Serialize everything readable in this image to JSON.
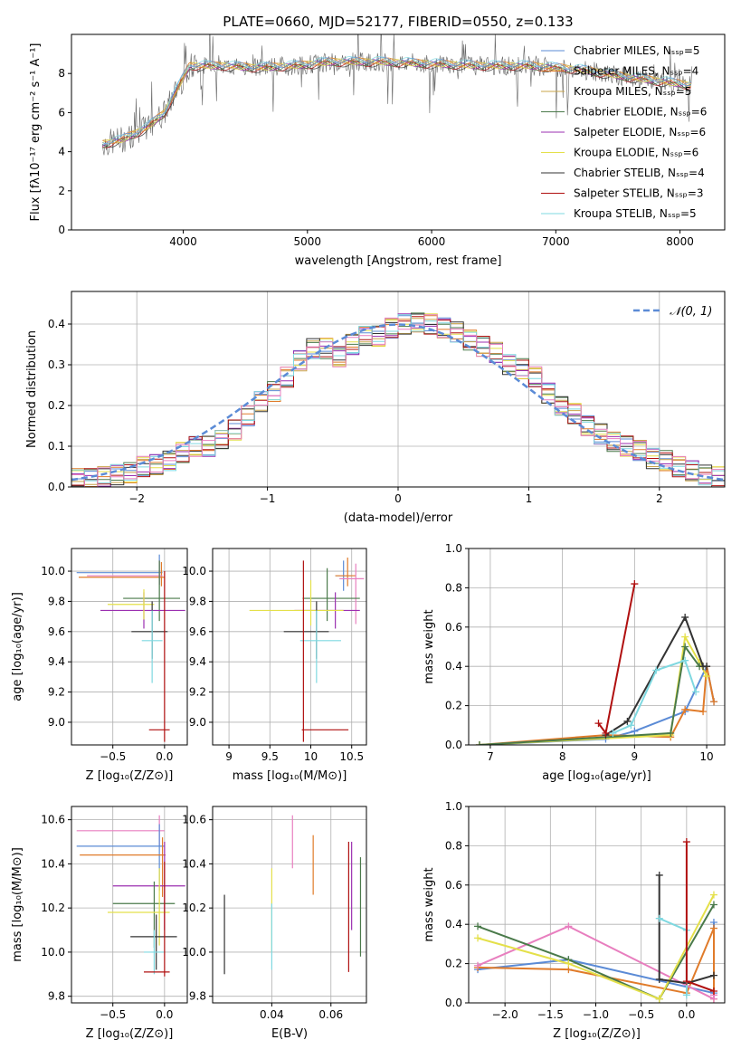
{
  "figure_title": "PLATE=0660, MJD=52177, FIBERID=0550, z=0.133",
  "colors": {
    "chabrier_miles": "#5b8bd6",
    "salpeter_miles": "#e07b2a",
    "kroupa_miles": "#c9a44a",
    "chabrier_elodie": "#4a7a4a",
    "salpeter_elodie": "#9b2fb0",
    "kroupa_elodie": "#e4e04a",
    "chabrier_stelib": "#333333",
    "salpeter_stelib": "#b01010",
    "kroupa_stelib": "#7fd8e0",
    "pink": "#e87fbf",
    "green": "#6a9a5a"
  },
  "chart_data": [
    {
      "id": "spectrum",
      "type": "line",
      "xlabel": "wavelength [Angstrom, rest frame]",
      "ylabel": "Flux [fλ10⁻¹⁷ erg cm⁻² s⁻¹ A⁻¹]",
      "xlim": [
        3100,
        8360
      ],
      "ylim": [
        0,
        10
      ],
      "xticks": [
        4000,
        5000,
        6000,
        7000,
        8000
      ],
      "yticks": [
        0,
        2,
        4,
        6,
        8
      ],
      "grid": false,
      "legend_position": "right",
      "legend": [
        {
          "label": "Chabrier MILES, Nₛₛₚ=5",
          "color": "chabrier_miles"
        },
        {
          "label": "Salpeter MILES, Nₛₛₚ=4",
          "color": "salpeter_miles"
        },
        {
          "label": "Kroupa MILES, Nₛₛₚ=5",
          "color": "kroupa_miles"
        },
        {
          "label": "Chabrier ELODIE, Nₛₛₚ=6",
          "color": "chabrier_elodie"
        },
        {
          "label": "Salpeter ELODIE, Nₛₛₚ=6",
          "color": "salpeter_elodie"
        },
        {
          "label": "Kroupa ELODIE, Nₛₛₚ=6",
          "color": "kroupa_elodie"
        },
        {
          "label": "Chabrier STELIB, Nₛₛₚ=4",
          "color": "chabrier_stelib"
        },
        {
          "label": "Salpeter STELIB, Nₛₛₚ=3",
          "color": "salpeter_stelib"
        },
        {
          "label": "Kroupa STELIB, Nₛₛₚ=5",
          "color": "kroupa_stelib"
        }
      ],
      "continuum": [
        [
          3350,
          4.4
        ],
        [
          3500,
          4.6
        ],
        [
          3700,
          5.2
        ],
        [
          3850,
          6.0
        ],
        [
          3950,
          7.2
        ],
        [
          4050,
          8.4
        ],
        [
          4300,
          8.4
        ],
        [
          4600,
          8.3
        ],
        [
          4900,
          8.4
        ],
        [
          5200,
          8.6
        ],
        [
          5600,
          8.6
        ],
        [
          6000,
          8.5
        ],
        [
          6400,
          8.4
        ],
        [
          6800,
          8.4
        ],
        [
          7200,
          8.2
        ],
        [
          7600,
          7.8
        ],
        [
          8100,
          7.4
        ]
      ]
    },
    {
      "id": "residuals",
      "type": "bar",
      "xlabel": "(data-model)/error",
      "ylabel": "Normed distribution",
      "xlim": [
        -2.5,
        2.5
      ],
      "ylim": [
        0,
        0.48
      ],
      "xticks": [
        -2,
        -1,
        0,
        1,
        2
      ],
      "yticks": [
        0.0,
        0.1,
        0.2,
        0.3,
        0.4
      ],
      "grid": true,
      "legend_position": "top-right",
      "legend": [
        {
          "label": "𝒩(0, 1)",
          "color": "chabrier_miles"
        }
      ],
      "bin_width": 0.1,
      "bins_start": -2.5,
      "heights": [
        0.02,
        0.02,
        0.025,
        0.03,
        0.035,
        0.05,
        0.055,
        0.065,
        0.085,
        0.1,
        0.1,
        0.115,
        0.14,
        0.175,
        0.21,
        0.235,
        0.27,
        0.31,
        0.34,
        0.34,
        0.32,
        0.35,
        0.37,
        0.37,
        0.39,
        0.4,
        0.405,
        0.4,
        0.39,
        0.38,
        0.36,
        0.345,
        0.33,
        0.3,
        0.29,
        0.27,
        0.23,
        0.2,
        0.18,
        0.15,
        0.13,
        0.11,
        0.1,
        0.09,
        0.07,
        0.065,
        0.05,
        0.04,
        0.03,
        0.025
      ]
    },
    {
      "id": "age_vs_Z",
      "type": "scatter",
      "xlabel": "Z [log₁₀(Z/Z⊙)]",
      "ylabel": "age  [log₁₀(age/yr)]",
      "xlim": [
        -0.9,
        0.22
      ],
      "ylim": [
        8.85,
        10.15
      ],
      "xticks": [
        -0.5,
        0.0
      ],
      "xtick_labels": [
        "−0.5",
        "0.0"
      ],
      "yticks": [
        9.0,
        9.2,
        9.4,
        9.6,
        9.8,
        10.0
      ],
      "grid": true,
      "points": [
        {
          "x": -0.05,
          "y": 9.99,
          "xerr": [
            0.8,
            0.03
          ],
          "yerr": [
            0.08,
            0.12
          ],
          "color": "chabrier_miles"
        },
        {
          "x": -0.03,
          "y": 9.96,
          "xerr": [
            0.8,
            0.03
          ],
          "yerr": [
            0.06,
            0.1
          ],
          "color": "salpeter_miles"
        },
        {
          "x": -0.05,
          "y": 9.97,
          "xerr": [
            0.7,
            0.03
          ],
          "yerr": [
            0.06,
            0.1
          ],
          "color": "pink"
        },
        {
          "x": -0.05,
          "y": 9.82,
          "xerr": [
            0.35,
            0.2
          ],
          "yerr": [
            0.15,
            0.25
          ],
          "color": "chabrier_elodie"
        },
        {
          "x": -0.2,
          "y": 9.74,
          "xerr": [
            0.42,
            0.4
          ],
          "yerr": [
            0.12,
            0.12
          ],
          "color": "salpeter_elodie"
        },
        {
          "x": -0.2,
          "y": 9.78,
          "xerr": [
            0.35,
            0.1
          ],
          "yerr": [
            0.1,
            0.1
          ],
          "color": "kroupa_elodie"
        },
        {
          "x": -0.12,
          "y": 9.6,
          "xerr": [
            0.2,
            0.15
          ],
          "yerr": [
            0.18,
            0.2
          ],
          "color": "chabrier_stelib"
        },
        {
          "x": -0.12,
          "y": 9.54,
          "xerr": [
            0.1,
            0.1
          ],
          "yerr": [
            0.28,
            0.2
          ],
          "color": "kroupa_stelib"
        },
        {
          "x": 0.0,
          "y": 8.95,
          "xerr": [
            0.15,
            0.05
          ],
          "yerr": [
            0.08,
            1.05
          ],
          "color": "salpeter_stelib"
        }
      ]
    },
    {
      "id": "age_vs_mass",
      "type": "scatter",
      "xlabel": "mass [log₁₀(M/M⊙)]",
      "ylabel": "",
      "xlim": [
        8.8,
        10.68
      ],
      "ylim": [
        8.85,
        10.15
      ],
      "xticks": [
        9.0,
        9.5,
        10.0,
        10.5
      ],
      "yticks": [
        9.0,
        9.2,
        9.4,
        9.6,
        9.8,
        10.0
      ],
      "grid": true,
      "points": [
        {
          "x": 10.4,
          "y": 9.97,
          "xerr": [
            0.1,
            0.1
          ],
          "yerr": [
            0.1,
            0.1
          ],
          "color": "chabrier_miles"
        },
        {
          "x": 10.45,
          "y": 9.97,
          "xerr": [
            0.15,
            0.1
          ],
          "yerr": [
            0.07,
            0.12
          ],
          "color": "salpeter_miles"
        },
        {
          "x": 10.55,
          "y": 9.95,
          "xerr": [
            0.2,
            0.1
          ],
          "yerr": [
            0.3,
            0.1
          ],
          "color": "pink"
        },
        {
          "x": 10.2,
          "y": 9.82,
          "xerr": [
            0.3,
            0.4
          ],
          "yerr": [
            0.15,
            0.2
          ],
          "color": "chabrier_elodie"
        },
        {
          "x": 10.3,
          "y": 9.74,
          "xerr": [
            0.5,
            0.3
          ],
          "yerr": [
            0.12,
            0.12
          ],
          "color": "salpeter_elodie"
        },
        {
          "x": 10.0,
          "y": 9.74,
          "xerr": [
            0.75,
            0.4
          ],
          "yerr": [
            0.1,
            0.2
          ],
          "color": "kroupa_elodie"
        },
        {
          "x": 10.07,
          "y": 9.6,
          "xerr": [
            0.4,
            0.15
          ],
          "yerr": [
            0.18,
            0.2
          ],
          "color": "chabrier_stelib"
        },
        {
          "x": 10.07,
          "y": 9.54,
          "xerr": [
            0.2,
            0.3
          ],
          "yerr": [
            0.28,
            0.2
          ],
          "color": "kroupa_stelib"
        },
        {
          "x": 9.91,
          "y": 8.95,
          "xerr": [
            0.02,
            0.55
          ],
          "yerr": [
            0.08,
            1.12
          ],
          "color": "salpeter_stelib"
        }
      ]
    },
    {
      "id": "weight_vs_age",
      "type": "line",
      "xlabel": "age  [log₁₀(age/yr)]",
      "ylabel": "mass weight",
      "xlim": [
        6.7,
        10.25
      ],
      "ylim": [
        0,
        1.0
      ],
      "xticks": [
        7,
        8,
        9,
        10
      ],
      "yticks": [
        0.0,
        0.2,
        0.4,
        0.6,
        0.8,
        1.0
      ],
      "grid": true,
      "series": [
        {
          "color": "chabrier_miles",
          "x": [
            6.85,
            8.6,
            9.0,
            9.7,
            10.0,
            10.1
          ],
          "y": [
            0.0,
            0.03,
            0.07,
            0.17,
            0.4,
            0.22
          ]
        },
        {
          "color": "salpeter_miles",
          "x": [
            6.85,
            8.6,
            9.5,
            9.7,
            9.95,
            10.0,
            10.1
          ],
          "y": [
            0.0,
            0.05,
            0.04,
            0.18,
            0.17,
            0.4,
            0.22
          ]
        },
        {
          "color": "kroupa_elodie",
          "x": [
            6.85,
            9.5,
            9.7,
            9.9,
            10.0
          ],
          "y": [
            0.0,
            0.05,
            0.55,
            0.42,
            0.35
          ]
        },
        {
          "color": "chabrier_elodie",
          "x": [
            6.85,
            9.5,
            9.7,
            9.9
          ],
          "y": [
            0.0,
            0.06,
            0.5,
            0.4
          ]
        },
        {
          "color": "chabrier_stelib",
          "x": [
            8.6,
            8.9,
            9.7,
            9.95,
            10.0
          ],
          "y": [
            0.05,
            0.12,
            0.65,
            0.4,
            0.4
          ]
        },
        {
          "color": "kroupa_stelib",
          "x": [
            8.7,
            8.95,
            9.3,
            9.7,
            9.85
          ],
          "y": [
            0.06,
            0.1,
            0.38,
            0.43,
            0.27
          ]
        },
        {
          "color": "salpeter_stelib",
          "x": [
            8.5,
            8.6,
            9.0
          ],
          "y": [
            0.11,
            0.06,
            0.82
          ]
        }
      ]
    },
    {
      "id": "mass_vs_Z",
      "type": "scatter",
      "xlabel": "Z [log₁₀(Z/Z⊙)]",
      "ylabel": "mass [log₁₀(M/M⊙)]",
      "xlim": [
        -0.9,
        0.22
      ],
      "ylim": [
        9.77,
        10.66
      ],
      "xticks": [
        -0.5,
        0.0
      ],
      "xtick_labels": [
        "−0.5",
        "0.0"
      ],
      "yticks": [
        9.8,
        10.0,
        10.2,
        10.4,
        10.6
      ],
      "grid": true,
      "points": [
        {
          "x": -0.05,
          "y": 10.55,
          "xerr": [
            0.8,
            0.05
          ],
          "yerr": [
            0.07,
            0.07
          ],
          "color": "pink"
        },
        {
          "x": -0.05,
          "y": 10.48,
          "xerr": [
            0.8,
            0.05
          ],
          "yerr": [
            0.2,
            0.1
          ],
          "color": "chabrier_miles"
        },
        {
          "x": -0.02,
          "y": 10.44,
          "xerr": [
            0.8,
            0.03
          ],
          "yerr": [
            0.19,
            0.08
          ],
          "color": "salpeter_miles"
        },
        {
          "x": 0.0,
          "y": 10.3,
          "xerr": [
            0.5,
            0.2
          ],
          "yerr": [
            0.2,
            0.2
          ],
          "color": "salpeter_elodie"
        },
        {
          "x": -0.1,
          "y": 10.22,
          "xerr": [
            0.4,
            0.2
          ],
          "yerr": [
            0.2,
            0.1
          ],
          "color": "chabrier_elodie"
        },
        {
          "x": -0.05,
          "y": 10.18,
          "xerr": [
            0.5,
            0.1
          ],
          "yerr": [
            0.15,
            0.2
          ],
          "color": "kroupa_elodie"
        },
        {
          "x": -0.08,
          "y": 10.07,
          "xerr": [
            0.25,
            0.2
          ],
          "yerr": [
            0.15,
            0.1
          ],
          "color": "chabrier_stelib"
        },
        {
          "x": -0.1,
          "y": 10.0,
          "xerr": [
            0.1,
            0.1
          ],
          "yerr": [
            0.1,
            0.1
          ],
          "color": "kroupa_stelib"
        },
        {
          "x": 0.0,
          "y": 9.91,
          "xerr": [
            0.2,
            0.05
          ],
          "yerr": [
            0.02,
            0.5
          ],
          "color": "salpeter_stelib"
        }
      ]
    },
    {
      "id": "mass_vs_ebv",
      "type": "scatter",
      "xlabel": "E(B-V)",
      "ylabel": "",
      "xlim": [
        0.02,
        0.072
      ],
      "ylim": [
        9.77,
        10.66
      ],
      "xticks": [
        0.04,
        0.06
      ],
      "yticks": [
        9.8,
        10.0,
        10.2,
        10.4,
        10.6
      ],
      "grid": true,
      "points": [
        {
          "x": 0.024,
          "y": 10.07,
          "yerr": [
            0.17,
            0.19
          ],
          "color": "chabrier_stelib"
        },
        {
          "x": 0.04,
          "y": 10.2,
          "yerr": [
            0.2,
            0.18
          ],
          "color": "kroupa_elodie"
        },
        {
          "x": 0.04,
          "y": 10.1,
          "yerr": [
            0.18,
            0.12
          ],
          "color": "kroupa_stelib"
        },
        {
          "x": 0.047,
          "y": 10.5,
          "yerr": [
            0.12,
            0.12
          ],
          "color": "pink"
        },
        {
          "x": 0.054,
          "y": 10.4,
          "yerr": [
            0.14,
            0.13
          ],
          "color": "salpeter_miles"
        },
        {
          "x": 0.066,
          "y": 10.22,
          "yerr": [
            0.31,
            0.28
          ],
          "color": "salpeter_stelib"
        },
        {
          "x": 0.067,
          "y": 10.3,
          "yerr": [
            0.2,
            0.2
          ],
          "color": "salpeter_elodie"
        },
        {
          "x": 0.07,
          "y": 10.2,
          "yerr": [
            0.22,
            0.23
          ],
          "color": "chabrier_elodie"
        }
      ]
    },
    {
      "id": "weight_vs_Z",
      "type": "line",
      "xlabel": "Z [log₁₀(Z/Z⊙)]",
      "ylabel": "mass weight",
      "xlim": [
        -2.4,
        0.42
      ],
      "ylim": [
        0,
        1.0
      ],
      "xticks": [
        -2.0,
        -1.5,
        -1.0,
        -0.5,
        0.0
      ],
      "xtick_labels": [
        "−2.0",
        "−1.5",
        "−1.0",
        "−0.5",
        "0.0"
      ],
      "yticks": [
        0.0,
        0.2,
        0.4,
        0.6,
        0.8,
        1.0
      ],
      "grid": true,
      "series": [
        {
          "color": "chabrier_miles",
          "x": [
            -2.3,
            -1.3,
            0.3,
            0.3
          ],
          "y": [
            0.17,
            0.22,
            0.05,
            0.41
          ]
        },
        {
          "color": "salpeter_miles",
          "x": [
            -2.3,
            -1.3,
            0.0,
            0.3,
            0.3
          ],
          "y": [
            0.18,
            0.17,
            0.05,
            0.38,
            0.02
          ]
        },
        {
          "color": "pink",
          "x": [
            -2.3,
            -1.3,
            0.3,
            0.3
          ],
          "y": [
            0.19,
            0.39,
            0.02,
            0.04
          ]
        },
        {
          "color": "chabrier_elodie",
          "x": [
            -2.3,
            -1.3,
            -0.3,
            0.3
          ],
          "y": [
            0.39,
            0.22,
            0.02,
            0.5
          ]
        },
        {
          "color": "kroupa_elodie",
          "x": [
            -2.3,
            -1.3,
            -0.3,
            0.3
          ],
          "y": [
            0.33,
            0.2,
            0.02,
            0.55
          ]
        },
        {
          "color": "chabrier_stelib",
          "x": [
            -0.3,
            -0.3,
            0.0,
            0.3
          ],
          "y": [
            0.65,
            0.12,
            0.1,
            0.14
          ]
        },
        {
          "color": "kroupa_stelib",
          "x": [
            -0.3,
            0.0,
            0.0
          ],
          "y": [
            0.43,
            0.37,
            0.04
          ]
        },
        {
          "color": "salpeter_stelib",
          "x": [
            0.0,
            0.0,
            0.3
          ],
          "y": [
            0.82,
            0.11,
            0.06
          ]
        }
      ]
    }
  ]
}
